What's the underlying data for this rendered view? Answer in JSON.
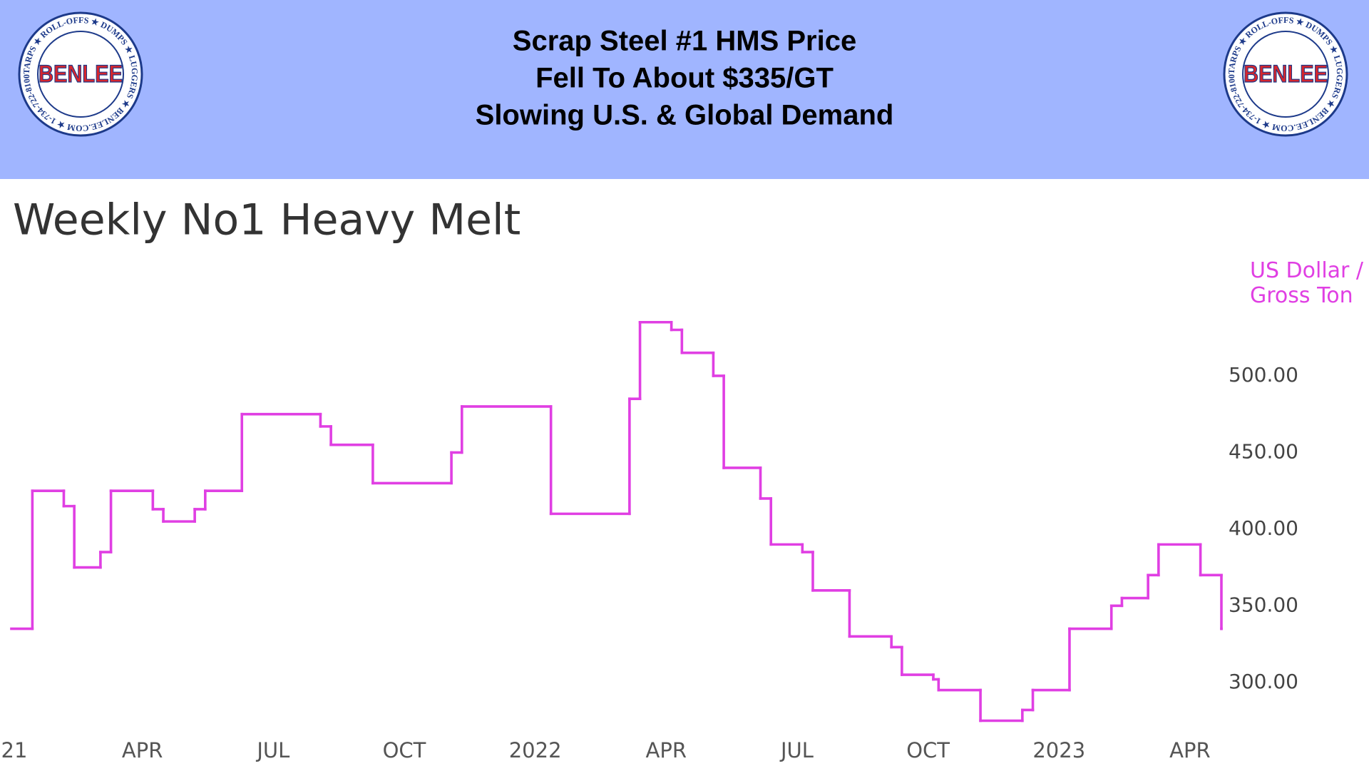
{
  "header": {
    "title_lines": [
      "Scrap Steel #1 HMS Price",
      "Fell To About $335/GT",
      "Slowing U.S. & Global Demand"
    ],
    "logo": {
      "name": "BENLEE",
      "ring_text": "TARPS ★ ROLL-OFFS ★ DUMPS ★ LUGGERS ★ BENLEE.COM ★ 1-734-722-8100 ★ PARTS ★"
    }
  },
  "chart_data": {
    "type": "line",
    "step": "post",
    "title": "Weekly No1 Heavy Melt",
    "y_label": "US Dollar / Gross Ton",
    "color": "#e03fe3",
    "grid": false,
    "y_axis_side": "right",
    "x": [
      2021.0,
      2021.04,
      2021.1,
      2021.12,
      2021.17,
      2021.19,
      2021.27,
      2021.29,
      2021.35,
      2021.37,
      2021.44,
      2021.59,
      2021.61,
      2021.69,
      2021.84,
      2021.86,
      2022.03,
      2022.18,
      2022.2,
      2022.26,
      2022.28,
      2022.34,
      2022.36,
      2022.43,
      2022.45,
      2022.51,
      2022.53,
      2022.6,
      2022.68,
      2022.7,
      2022.76,
      2022.77,
      2022.85,
      2022.93,
      2022.95,
      2023.02,
      2023.1,
      2023.12,
      2023.17,
      2023.19,
      2023.27,
      2023.31
    ],
    "values": [
      335,
      425,
      415,
      375,
      385,
      425,
      413,
      405,
      413,
      425,
      475,
      467,
      455,
      430,
      450,
      480,
      410,
      485,
      535,
      530,
      515,
      500,
      440,
      420,
      390,
      385,
      360,
      330,
      323,
      305,
      302,
      295,
      275,
      282,
      295,
      335,
      350,
      355,
      370,
      390,
      370,
      335
    ],
    "xlim": [
      2021.0,
      2023.31
    ],
    "xticks": [
      {
        "value": 2021,
        "label": "'21"
      },
      {
        "value": 2021.25,
        "label": "APR"
      },
      {
        "value": 2021.5,
        "label": "JUL"
      },
      {
        "value": 2021.75,
        "label": "OCT"
      },
      2022,
      {
        "value": 2022.25,
        "label": "APR"
      },
      {
        "value": 2022.5,
        "label": "JUL"
      },
      {
        "value": 2022.75,
        "label": "OCT"
      },
      2023,
      {
        "value": 2023.25,
        "label": "APR"
      }
    ],
    "ylim": [
      265,
      540
    ],
    "yticks": [
      {
        "value": 300,
        "label": "300.00"
      },
      {
        "value": 350,
        "label": "350.00"
      },
      {
        "value": 400,
        "label": "400.00"
      },
      {
        "value": 450,
        "label": "450.00"
      },
      {
        "value": 500,
        "label": "500.00"
      }
    ]
  }
}
